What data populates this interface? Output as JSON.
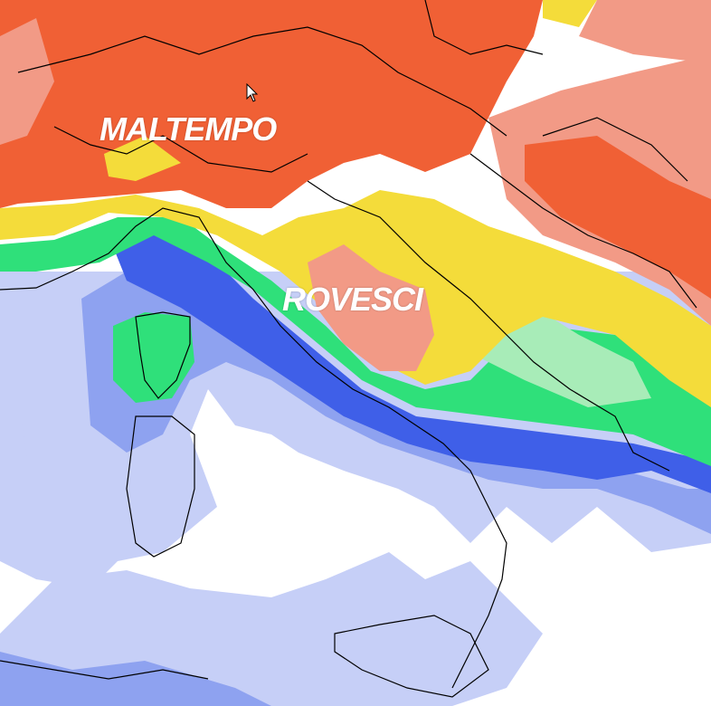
{
  "map": {
    "labels": [
      "MALTEMPO",
      "ROVESCI"
    ],
    "colors": {
      "background": "#ffffff",
      "light_blue": "#c6cff7",
      "mid_blue": "#8ea2f0",
      "blue": "#3f5fe8",
      "green": "#2fe07a",
      "light_green": "#a8ecb8",
      "yellow": "#f4dc3a",
      "pale_yellow": "#f5e58e",
      "salmon": "#f29a86",
      "orange_red": "#f06035",
      "border": "#000000"
    }
  }
}
